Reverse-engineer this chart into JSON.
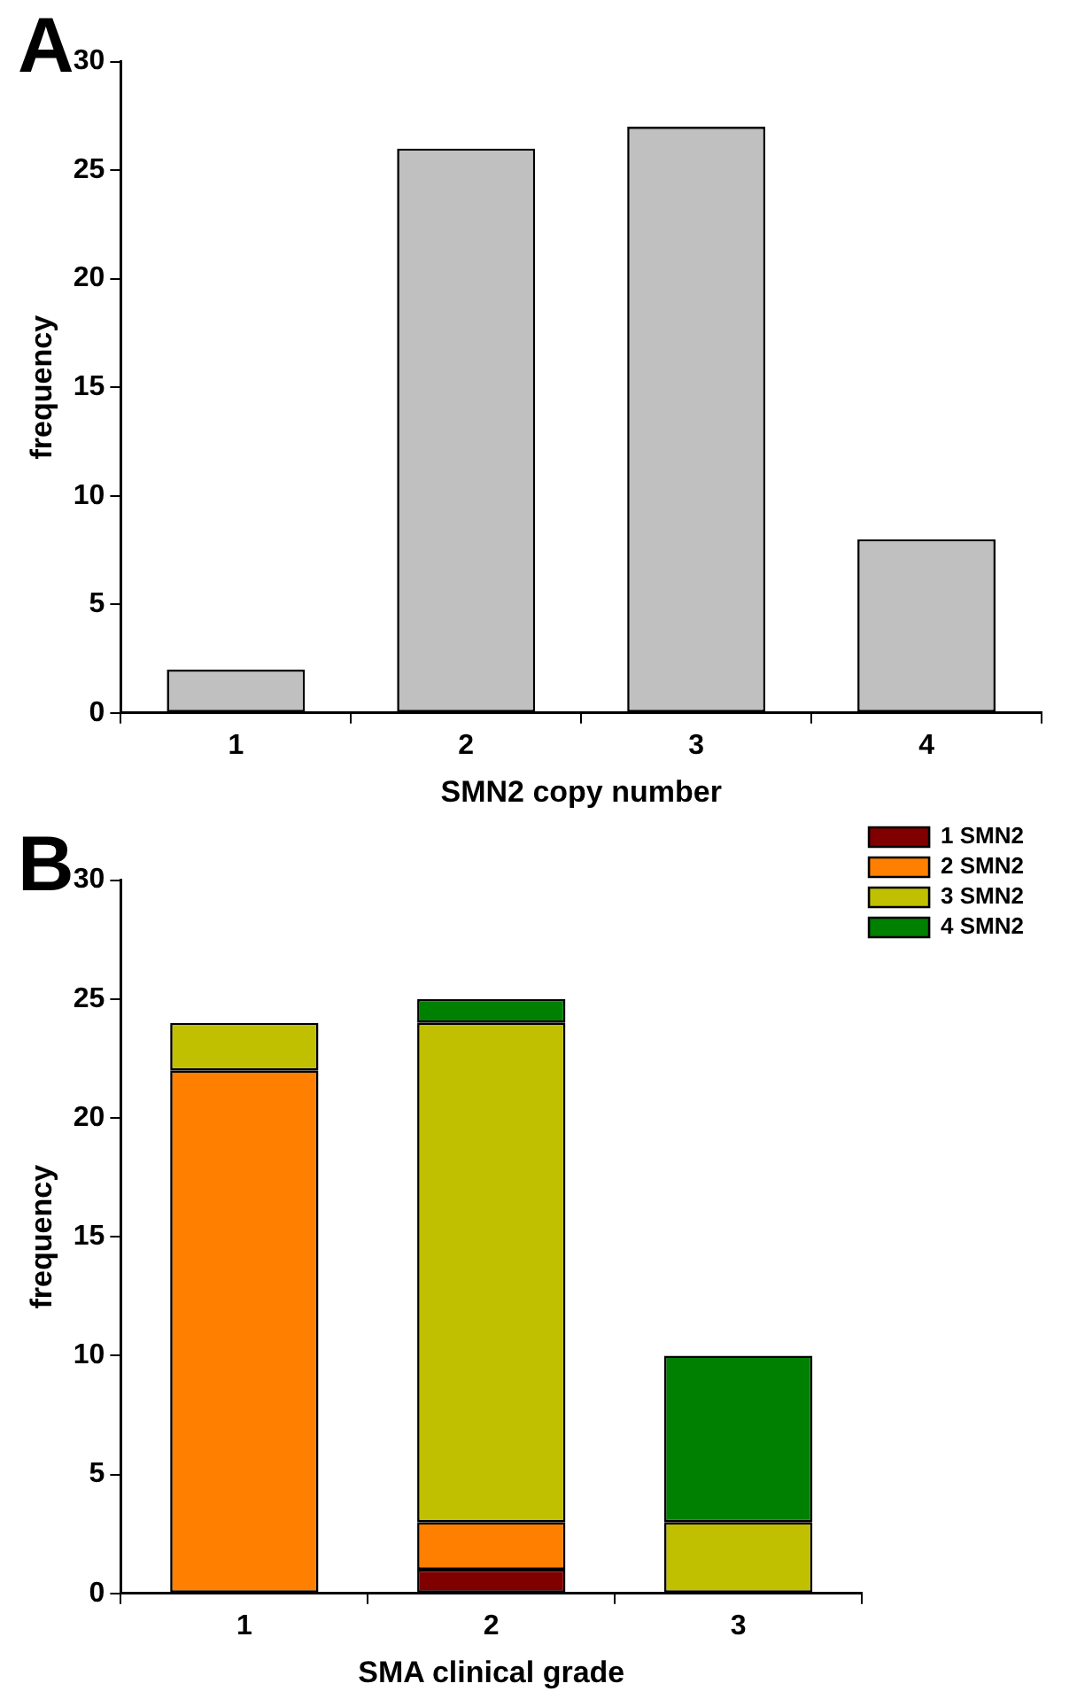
{
  "chart_data": [
    {
      "type": "bar",
      "title": "A",
      "categories": [
        "1",
        "2",
        "3",
        "4"
      ],
      "values": [
        2,
        26,
        27,
        8
      ],
      "color": "#c0c0c0",
      "xlabel": "SMN2 copy number",
      "ylabel": "frequency",
      "ylim": [
        0,
        30
      ],
      "yticks": [
        0,
        5,
        10,
        15,
        20,
        25,
        30
      ],
      "grid": false
    },
    {
      "type": "bar",
      "title": "B",
      "stacked": true,
      "categories": [
        "1",
        "2",
        "3"
      ],
      "series": [
        {
          "name": "1 SMN2",
          "color": "#800000",
          "values": [
            0,
            1,
            0
          ]
        },
        {
          "name": "2 SMN2",
          "color": "#ff8000",
          "values": [
            22,
            2,
            0
          ]
        },
        {
          "name": "3 SMN2",
          "color": "#c0c000",
          "values": [
            2,
            21,
            3
          ]
        },
        {
          "name": "4 SMN2",
          "color": "#008000",
          "values": [
            0,
            1,
            7
          ]
        }
      ],
      "xlabel": "SMA clinical grade",
      "ylabel": "frequency",
      "ylim": [
        0,
        30
      ],
      "yticks": [
        0,
        5,
        10,
        15,
        20,
        25,
        30
      ],
      "grid": false,
      "legend": "top right"
    }
  ]
}
